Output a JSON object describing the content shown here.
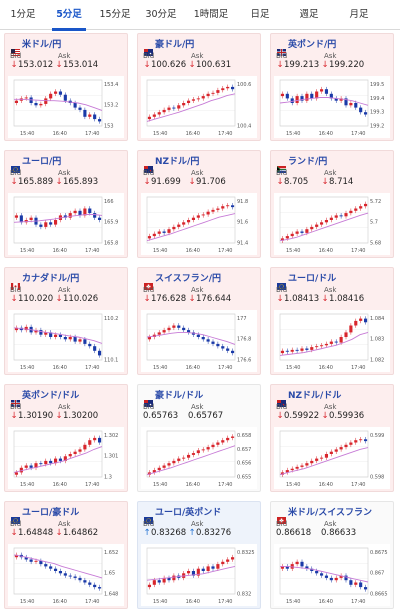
{
  "tabs": [
    "1分足",
    "5分足",
    "15分足",
    "30分足",
    "1時間足",
    "日足",
    "週足",
    "月足"
  ],
  "active_tab": 1,
  "labels": {
    "bid": "Bid",
    "ask": "Ask"
  },
  "x_ticks": [
    "15:40",
    "16:40",
    "17:40"
  ],
  "cards": [
    {
      "pair": "米ドル/円",
      "flag": "us",
      "bid": "153.012",
      "ask": "153.014",
      "dir": "down",
      "y": [
        "153.4",
        "153.2",
        "153"
      ],
      "chart_data": {
        "type": "candlestick",
        "series": [
          0.55,
          0.6,
          0.62,
          0.5,
          0.45,
          0.48,
          0.6,
          0.7,
          0.75,
          0.68,
          0.55,
          0.5,
          0.4,
          0.35,
          0.2,
          0.25,
          0.15,
          0.1
        ],
        "ma": [
          0.58,
          0.58,
          0.57,
          0.56,
          0.55,
          0.55,
          0.54,
          0.52,
          0.5,
          0.46,
          0.4,
          0.34
        ]
      }
    },
    {
      "pair": "豪ドル/円",
      "flag": "au",
      "bid": "100.626",
      "ask": "100.631",
      "dir": "down",
      "y": [
        "100.6",
        "100.4"
      ],
      "chart_data": {
        "type": "candlestick",
        "series": [
          0.2,
          0.25,
          0.3,
          0.35,
          0.4,
          0.38,
          0.45,
          0.5,
          0.55,
          0.58,
          0.6,
          0.65,
          0.7,
          0.72,
          0.78,
          0.82,
          0.85,
          0.8
        ],
        "ma": [
          0.1,
          0.15,
          0.2,
          0.25,
          0.3,
          0.36,
          0.42,
          0.48,
          0.55,
          0.6,
          0.66,
          0.7
        ]
      }
    },
    {
      "pair": "英ポンド/円",
      "flag": "gb",
      "bid": "199.213",
      "ask": "199.220",
      "dir": "down",
      "y": [
        "199.5",
        "199.4",
        "199.3",
        "199.2"
      ],
      "chart_data": {
        "type": "candlestick",
        "series": [
          0.7,
          0.6,
          0.5,
          0.65,
          0.55,
          0.7,
          0.6,
          0.75,
          0.8,
          0.7,
          0.6,
          0.55,
          0.6,
          0.45,
          0.5,
          0.4,
          0.3,
          0.25
        ],
        "ma": [
          0.5,
          0.52,
          0.55,
          0.58,
          0.6,
          0.62,
          0.62,
          0.6,
          0.58,
          0.55,
          0.5,
          0.45
        ]
      }
    },
    {
      "pair": "ユーロ/円",
      "flag": "eu",
      "bid": "165.889",
      "ask": "165.893",
      "dir": "down",
      "y": [
        "166",
        "165.9",
        "165.8"
      ],
      "chart_data": {
        "type": "candlestick",
        "series": [
          0.6,
          0.45,
          0.5,
          0.55,
          0.4,
          0.35,
          0.45,
          0.4,
          0.5,
          0.6,
          0.55,
          0.65,
          0.7,
          0.6,
          0.75,
          0.65,
          0.55,
          0.5
        ],
        "ma": [
          0.45,
          0.46,
          0.47,
          0.48,
          0.5,
          0.52,
          0.55,
          0.58,
          0.6,
          0.62,
          0.62,
          0.6
        ]
      }
    },
    {
      "pair": "NZドル/円",
      "flag": "nz",
      "bid": "91.699",
      "ask": "91.706",
      "dir": "down",
      "y": [
        "91.8",
        "91.6",
        "91.4"
      ],
      "chart_data": {
        "type": "candlestick",
        "series": [
          0.15,
          0.2,
          0.25,
          0.22,
          0.3,
          0.35,
          0.4,
          0.45,
          0.5,
          0.55,
          0.6,
          0.62,
          0.68,
          0.72,
          0.75,
          0.8,
          0.82,
          0.78
        ],
        "ma": [
          0.05,
          0.1,
          0.15,
          0.2,
          0.26,
          0.32,
          0.38,
          0.44,
          0.5,
          0.56,
          0.6,
          0.64
        ]
      }
    },
    {
      "pair": "ランド/円",
      "flag": "za",
      "bid": "8.705",
      "ask": "8.714",
      "dir": "down",
      "y": [
        "5.72",
        "5.7",
        "5.68"
      ],
      "chart_data": {
        "type": "candlestick",
        "series": [
          0.1,
          0.15,
          0.2,
          0.25,
          0.22,
          0.3,
          0.35,
          0.4,
          0.45,
          0.5,
          0.55,
          0.6,
          0.58,
          0.65,
          0.7,
          0.75,
          0.8,
          0.85
        ],
        "ma": [
          0.05,
          0.08,
          0.12,
          0.18,
          0.24,
          0.3,
          0.36,
          0.42,
          0.48,
          0.54,
          0.6,
          0.65
        ]
      }
    },
    {
      "pair": "カナダドル/円",
      "flag": "ca",
      "bid": "110.020",
      "ask": "110.026",
      "dir": "down",
      "y": [
        "110.2",
        "110.1"
      ],
      "chart_data": {
        "type": "candlestick",
        "series": [
          0.7,
          0.65,
          0.72,
          0.6,
          0.65,
          0.55,
          0.6,
          0.5,
          0.55,
          0.5,
          0.45,
          0.5,
          0.4,
          0.45,
          0.35,
          0.3,
          0.2,
          0.1
        ],
        "ma": [
          0.7,
          0.68,
          0.66,
          0.63,
          0.6,
          0.58,
          0.55,
          0.52,
          0.5,
          0.46,
          0.42,
          0.36
        ]
      }
    },
    {
      "pair": "スイスフラン/円",
      "flag": "ch",
      "bid": "176.628",
      "ask": "176.644",
      "dir": "down",
      "y": [
        "177",
        "176.8",
        "176.6"
      ],
      "chart_data": {
        "type": "candlestick",
        "series": [
          0.5,
          0.55,
          0.6,
          0.65,
          0.7,
          0.75,
          0.7,
          0.65,
          0.6,
          0.55,
          0.5,
          0.45,
          0.4,
          0.35,
          0.3,
          0.25,
          0.2,
          0.15
        ],
        "ma": [
          0.5,
          0.52,
          0.55,
          0.58,
          0.6,
          0.6,
          0.58,
          0.55,
          0.5,
          0.45,
          0.4,
          0.34
        ]
      }
    },
    {
      "pair": "ユーロ/ドル",
      "flag": "eu",
      "bid": "1.08413",
      "ask": "1.08416",
      "dir": "down",
      "y": [
        "1.084",
        "1.083",
        "1.082"
      ],
      "chart_data": {
        "type": "candlestick",
        "series": [
          0.2,
          0.18,
          0.22,
          0.2,
          0.25,
          0.22,
          0.28,
          0.3,
          0.32,
          0.35,
          0.4,
          0.38,
          0.5,
          0.6,
          0.75,
          0.85,
          0.9,
          0.82
        ],
        "ma": [
          0.1,
          0.12,
          0.14,
          0.16,
          0.2,
          0.24,
          0.28,
          0.32,
          0.38,
          0.45,
          0.55,
          0.6
        ]
      }
    },
    {
      "pair": "英ポンド/ドル",
      "flag": "gb",
      "bid": "1.30190",
      "ask": "1.30200",
      "dir": "down",
      "y": [
        "1.302",
        "1.301",
        "1.3"
      ],
      "chart_data": {
        "type": "candlestick",
        "series": [
          0.1,
          0.2,
          0.25,
          0.2,
          0.3,
          0.28,
          0.35,
          0.3,
          0.4,
          0.35,
          0.45,
          0.5,
          0.55,
          0.6,
          0.7,
          0.8,
          0.85,
          0.75
        ],
        "ma": [
          0.1,
          0.14,
          0.18,
          0.22,
          0.26,
          0.3,
          0.34,
          0.4,
          0.46,
          0.52,
          0.6,
          0.66
        ]
      }
    },
    {
      "pair": "豪ドル/ドル",
      "flag": "au",
      "bid": "0.65763",
      "ask": "0.65767",
      "dir": "none",
      "y": [
        "0.658",
        "0.657",
        "0.656",
        "0.655"
      ],
      "chart_data": {
        "type": "candlestick",
        "series": [
          0.1,
          0.15,
          0.2,
          0.25,
          0.3,
          0.35,
          0.4,
          0.42,
          0.48,
          0.52,
          0.58,
          0.6,
          0.65,
          0.7,
          0.75,
          0.8,
          0.85,
          0.88
        ],
        "ma": [
          0.05,
          0.1,
          0.15,
          0.2,
          0.26,
          0.32,
          0.38,
          0.44,
          0.5,
          0.56,
          0.62,
          0.68
        ]
      }
    },
    {
      "pair": "NZドル/ドル",
      "flag": "nz",
      "bid": "0.59922",
      "ask": "0.59936",
      "dir": "down",
      "y": [
        "0.599",
        "0.598"
      ],
      "chart_data": {
        "type": "candlestick",
        "series": [
          0.1,
          0.15,
          0.18,
          0.22,
          0.25,
          0.3,
          0.35,
          0.4,
          0.42,
          0.5,
          0.55,
          0.6,
          0.65,
          0.7,
          0.75,
          0.8,
          0.82,
          0.78
        ],
        "ma": [
          0.05,
          0.1,
          0.14,
          0.18,
          0.24,
          0.3,
          0.36,
          0.42,
          0.48,
          0.54,
          0.6,
          0.64
        ]
      }
    },
    {
      "pair": "ユーロ/豪ドル",
      "flag": "eu",
      "bid": "1.64848",
      "ask": "1.64862",
      "dir": "down",
      "y": [
        "1.652",
        "1.65",
        "1.648"
      ],
      "chart_data": {
        "type": "candlestick",
        "series": [
          0.85,
          0.8,
          0.75,
          0.7,
          0.72,
          0.65,
          0.6,
          0.55,
          0.5,
          0.45,
          0.4,
          0.38,
          0.35,
          0.3,
          0.25,
          0.2,
          0.15,
          0.12
        ],
        "ma": [
          0.85,
          0.82,
          0.78,
          0.74,
          0.7,
          0.66,
          0.6,
          0.55,
          0.5,
          0.45,
          0.4,
          0.35
        ]
      }
    },
    {
      "pair": "ユーロ/英ポンド",
      "flag": "eu",
      "bid": "0.83268",
      "ask": "0.83276",
      "dir": "up",
      "y": [
        "0.8325",
        "0.832"
      ],
      "chart_data": {
        "type": "candlestick",
        "series": [
          0.2,
          0.3,
          0.25,
          0.35,
          0.3,
          0.4,
          0.35,
          0.45,
          0.5,
          0.4,
          0.55,
          0.5,
          0.6,
          0.55,
          0.65,
          0.7,
          0.75,
          0.8
        ],
        "ma": [
          0.3,
          0.32,
          0.34,
          0.36,
          0.38,
          0.4,
          0.42,
          0.44,
          0.48,
          0.52,
          0.56,
          0.6
        ]
      }
    },
    {
      "pair": "米ドル/スイスフラン",
      "flag": "ch",
      "bid": "0.86618",
      "ask": "0.86633",
      "dir": "none",
      "y": [
        "0.8675",
        "0.867",
        "0.8665"
      ],
      "chart_data": {
        "type": "candlestick",
        "series": [
          0.6,
          0.55,
          0.65,
          0.7,
          0.6,
          0.55,
          0.5,
          0.45,
          0.4,
          0.35,
          0.3,
          0.35,
          0.4,
          0.3,
          0.2,
          0.25,
          0.15,
          0.1
        ],
        "ma": [
          0.6,
          0.6,
          0.58,
          0.56,
          0.54,
          0.5,
          0.46,
          0.42,
          0.38,
          0.34,
          0.3,
          0.26
        ]
      }
    }
  ]
}
